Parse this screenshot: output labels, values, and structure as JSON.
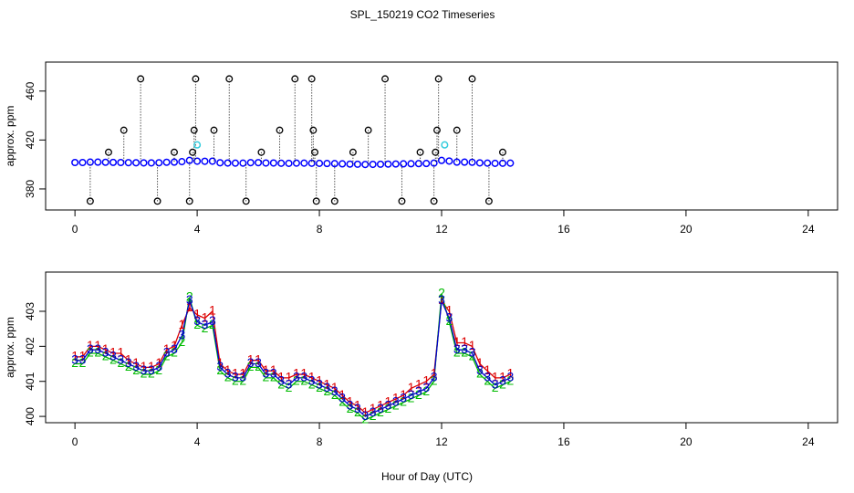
{
  "chart_data": [
    {
      "type": "scatter",
      "title": "SPL_150219  CO2 Timeseries",
      "ylabel": "approx. ppm",
      "x": [
        0,
        0.25,
        0.5,
        0.75,
        1,
        1.25,
        1.5,
        1.75,
        2,
        2.25,
        2.5,
        2.75,
        3,
        3.25,
        3.5,
        3.75,
        4,
        4.25,
        4.5,
        4.75,
        5,
        5.25,
        5.5,
        5.75,
        6,
        6.25,
        6.5,
        6.75,
        7,
        7.25,
        7.5,
        7.75,
        8,
        8.25,
        8.5,
        8.75,
        9,
        9.25,
        9.5,
        9.75,
        10,
        10.25,
        10.5,
        10.75,
        11,
        11.25,
        11.5,
        11.75,
        12,
        12.25,
        12.5,
        12.75,
        13,
        13.25,
        13.5,
        13.75,
        14,
        14.25
      ],
      "values": [
        401.6,
        401.6,
        401.9,
        401.9,
        401.8,
        401.7,
        401.6,
        401.5,
        401.4,
        401.3,
        401.3,
        401.4,
        401.8,
        401.9,
        402.3,
        403.3,
        402.7,
        402.6,
        402.7,
        401.4,
        401.2,
        401.1,
        401.1,
        401.5,
        401.5,
        401.2,
        401.2,
        401.0,
        400.9,
        401.1,
        401.1,
        401.0,
        400.9,
        400.8,
        400.7,
        400.5,
        400.3,
        400.2,
        400.0,
        400.1,
        400.2,
        400.3,
        400.4,
        400.5,
        400.6,
        400.7,
        400.8,
        401.1,
        403.3,
        402.8,
        401.9,
        401.9,
        401.8,
        401.3,
        401.1,
        400.9,
        401.0,
        401.1
      ],
      "color": "#0000ff",
      "outliers": {
        "color": "#000000",
        "x": [
          0.5,
          1.1,
          1.6,
          2.15,
          2.7,
          3.25,
          3.75,
          3.85,
          3.9,
          3.95,
          4.55,
          5.05,
          5.6,
          6.1,
          6.7,
          7.2,
          7.75,
          7.8,
          7.85,
          7.9,
          8.5,
          9.1,
          9.6,
          10.15,
          10.7,
          11.3,
          11.75,
          11.8,
          11.85,
          11.9,
          12.5,
          13.0,
          13.55,
          14.0
        ],
        "values": [
          370,
          410,
          428,
          470,
          370,
          410,
          370,
          410,
          428,
          470,
          428,
          470,
          370,
          410,
          428,
          470,
          470,
          428,
          410,
          370,
          370,
          410,
          428,
          470,
          370,
          410,
          370,
          410,
          428,
          470,
          428,
          470,
          370,
          410
        ]
      },
      "highlights": {
        "color": "#33ccdd",
        "x": [
          4.0,
          12.1
        ],
        "values": [
          416,
          416
        ]
      },
      "xlim": [
        -0.96,
        24.96
      ],
      "xticks": [
        0,
        4,
        8,
        12,
        16,
        20,
        24
      ],
      "ylim": [
        362.8,
        483.7
      ],
      "yticks": [
        380,
        420,
        460
      ]
    },
    {
      "type": "line",
      "ylabel": "approx. ppm",
      "xlabel": "Hour of Day (UTC)",
      "x": [
        0,
        0.25,
        0.5,
        0.75,
        1,
        1.25,
        1.5,
        1.75,
        2,
        2.25,
        2.5,
        2.75,
        3,
        3.25,
        3.5,
        3.75,
        4,
        4.25,
        4.5,
        4.75,
        5,
        5.25,
        5.5,
        5.75,
        6,
        6.25,
        6.5,
        6.75,
        7,
        7.25,
        7.5,
        7.75,
        8,
        8.25,
        8.5,
        8.75,
        9,
        9.25,
        9.5,
        9.75,
        10,
        10.25,
        10.5,
        10.75,
        11,
        11.25,
        11.5,
        11.75,
        12,
        12.25,
        12.5,
        12.75,
        13,
        13.25,
        13.5,
        13.75,
        14,
        14.25
      ],
      "series": [
        {
          "name": "1",
          "color": "#dd0000",
          "values": [
            401.7,
            401.7,
            402.0,
            402.0,
            401.9,
            401.8,
            401.8,
            401.6,
            401.5,
            401.4,
            401.4,
            401.5,
            401.9,
            402.0,
            402.6,
            403.1,
            402.9,
            402.8,
            403.0,
            401.5,
            401.3,
            401.2,
            401.2,
            401.6,
            401.6,
            401.3,
            401.3,
            401.1,
            401.1,
            401.2,
            401.2,
            401.1,
            401.0,
            400.9,
            400.8,
            400.6,
            400.4,
            400.3,
            400.1,
            400.2,
            400.3,
            400.4,
            400.5,
            400.6,
            400.8,
            400.9,
            401.0,
            401.2,
            403.3,
            403.0,
            402.1,
            402.1,
            402.0,
            401.5,
            401.3,
            401.1,
            401.1,
            401.2
          ]
        },
        {
          "name": "2",
          "color": "#00bb00",
          "values": [
            401.5,
            401.5,
            401.8,
            401.8,
            401.7,
            401.6,
            401.5,
            401.4,
            401.3,
            401.2,
            401.2,
            401.3,
            401.7,
            401.8,
            402.1,
            403.4,
            402.6,
            402.5,
            402.6,
            401.3,
            401.1,
            401.0,
            401.0,
            401.4,
            401.4,
            401.1,
            401.1,
            400.9,
            400.8,
            401.0,
            401.0,
            400.9,
            400.8,
            400.7,
            400.6,
            400.4,
            400.2,
            400.1,
            399.9,
            400.0,
            400.1,
            400.2,
            400.3,
            400.4,
            400.5,
            400.6,
            400.7,
            401.0,
            403.5,
            402.7,
            401.8,
            401.8,
            401.7,
            401.2,
            401.0,
            400.8,
            400.9,
            401.0
          ]
        },
        {
          "name": "3",
          "color": "#0000cc",
          "values": [
            401.6,
            401.6,
            401.9,
            401.9,
            401.8,
            401.7,
            401.6,
            401.5,
            401.4,
            401.3,
            401.3,
            401.4,
            401.8,
            401.9,
            402.3,
            403.3,
            402.7,
            402.6,
            402.7,
            401.4,
            401.2,
            401.1,
            401.1,
            401.5,
            401.5,
            401.2,
            401.2,
            401.0,
            400.9,
            401.1,
            401.1,
            401.0,
            400.9,
            400.8,
            400.7,
            400.5,
            400.3,
            400.2,
            400.0,
            400.1,
            400.2,
            400.3,
            400.4,
            400.5,
            400.6,
            400.7,
            400.8,
            401.1,
            403.3,
            402.8,
            401.9,
            401.9,
            401.8,
            401.3,
            401.1,
            400.9,
            401.0,
            401.1
          ]
        }
      ],
      "xlim": [
        -0.96,
        24.96
      ],
      "xticks": [
        0,
        4,
        8,
        12,
        16,
        20,
        24
      ],
      "ylim": [
        399.82,
        404.12
      ],
      "yticks": [
        400,
        401,
        402,
        403
      ]
    }
  ]
}
